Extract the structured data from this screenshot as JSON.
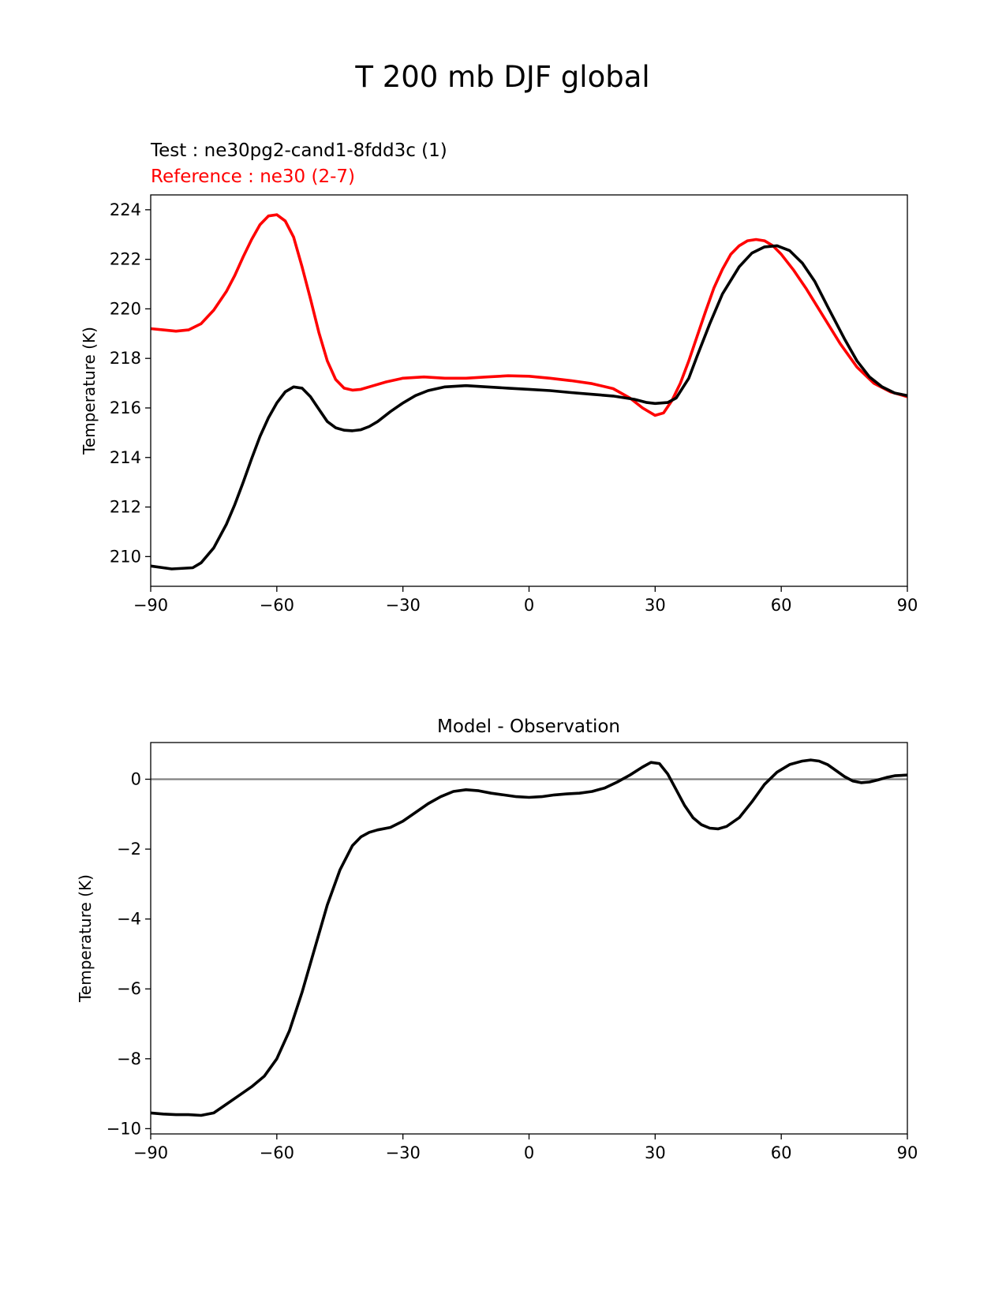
{
  "page_title": "T 200 mb DJF global",
  "chart_data": [
    {
      "type": "line",
      "legend_test": "Test : ne30pg2-cand1-8fdd3c (1)",
      "legend_reference": "Reference : ne30 (2-7)",
      "xlabel": "",
      "ylabel": "Temperature (K)",
      "xlim": [
        -90,
        90
      ],
      "ylim": [
        208.8,
        224.6
      ],
      "xticks": [
        -90,
        -60,
        -30,
        0,
        30,
        60,
        90
      ],
      "xtick_labels": [
        "−90",
        "−60",
        "−30",
        "0",
        "30",
        "60",
        "90"
      ],
      "yticks": [
        210,
        212,
        214,
        216,
        218,
        220,
        222,
        224
      ],
      "ytick_labels": [
        "210",
        "212",
        "214",
        "216",
        "218",
        "220",
        "222",
        "224"
      ],
      "series": [
        {
          "name": "Test",
          "color": "#000000",
          "x": [
            -90,
            -85,
            -80,
            -78,
            -75,
            -72,
            -70,
            -68,
            -66,
            -64,
            -62,
            -60,
            -58,
            -56,
            -54,
            -52,
            -50,
            -48,
            -46,
            -44,
            -42,
            -40,
            -38,
            -36,
            -33,
            -30,
            -27,
            -24,
            -20,
            -15,
            -10,
            -5,
            0,
            5,
            10,
            15,
            20,
            25,
            28,
            30,
            33,
            35,
            38,
            40,
            43,
            46,
            50,
            53,
            56,
            59,
            62,
            65,
            68,
            71,
            75,
            78,
            81,
            84,
            87,
            90
          ],
          "values": [
            209.62,
            209.5,
            209.55,
            209.75,
            210.35,
            211.3,
            212.1,
            213.0,
            213.95,
            214.85,
            215.6,
            216.2,
            216.65,
            216.85,
            216.8,
            216.45,
            215.95,
            215.45,
            215.2,
            215.1,
            215.08,
            215.12,
            215.25,
            215.45,
            215.85,
            216.2,
            216.5,
            216.7,
            216.85,
            216.9,
            216.85,
            216.8,
            216.75,
            216.7,
            216.62,
            216.55,
            216.48,
            216.35,
            216.22,
            216.18,
            216.22,
            216.4,
            217.2,
            218.1,
            219.4,
            220.6,
            221.7,
            222.25,
            222.5,
            222.55,
            222.35,
            221.85,
            221.1,
            220.1,
            218.8,
            217.9,
            217.25,
            216.85,
            216.6,
            216.5
          ]
        },
        {
          "name": "Reference",
          "color": "#ff0000",
          "x": [
            -90,
            -87,
            -84,
            -81,
            -78,
            -75,
            -72,
            -70,
            -68,
            -66,
            -64,
            -62,
            -60,
            -58,
            -56,
            -54,
            -52,
            -50,
            -48,
            -46,
            -44,
            -42,
            -40,
            -37,
            -34,
            -30,
            -25,
            -20,
            -15,
            -10,
            -5,
            0,
            5,
            10,
            15,
            20,
            24,
            27,
            30,
            32,
            34,
            36,
            38,
            40,
            42,
            44,
            46,
            48,
            50,
            52,
            54,
            56,
            58,
            60,
            63,
            66,
            70,
            74,
            78,
            82,
            86,
            90
          ],
          "values": [
            219.2,
            219.15,
            219.1,
            219.15,
            219.4,
            219.95,
            220.7,
            221.35,
            222.1,
            222.8,
            223.4,
            223.75,
            223.8,
            223.55,
            222.9,
            221.7,
            220.4,
            219.05,
            217.9,
            217.15,
            216.8,
            216.72,
            216.75,
            216.9,
            217.05,
            217.2,
            217.25,
            217.2,
            217.2,
            217.25,
            217.3,
            217.28,
            217.2,
            217.1,
            216.98,
            216.78,
            216.4,
            216.0,
            215.7,
            215.8,
            216.3,
            217.0,
            217.9,
            218.9,
            219.9,
            220.85,
            221.6,
            222.2,
            222.55,
            222.75,
            222.8,
            222.75,
            222.55,
            222.2,
            221.55,
            220.8,
            219.7,
            218.6,
            217.65,
            217.0,
            216.65,
            216.45
          ]
        }
      ]
    },
    {
      "type": "line",
      "title": "Model - Observation",
      "xlabel": "",
      "ylabel": "Temperature (K)",
      "xlim": [
        -90,
        90
      ],
      "ylim": [
        -10.15,
        1.05
      ],
      "xticks": [
        -90,
        -60,
        -30,
        0,
        30,
        60,
        90
      ],
      "xtick_labels": [
        "−90",
        "−60",
        "−30",
        "0",
        "30",
        "60",
        "90"
      ],
      "yticks": [
        -10,
        -8,
        -6,
        -4,
        -2,
        0
      ],
      "ytick_labels": [
        "−10",
        "−8",
        "−6",
        "−4",
        "−2",
        "0"
      ],
      "zero_line": {
        "value": 0,
        "color": "#808080"
      },
      "series": [
        {
          "name": "Difference",
          "color": "#000000",
          "x": [
            -90,
            -87,
            -84,
            -81,
            -78,
            -75,
            -72,
            -69,
            -66,
            -63,
            -60,
            -57,
            -54,
            -51,
            -48,
            -45,
            -42,
            -40,
            -38,
            -36,
            -33,
            -30,
            -27,
            -24,
            -21,
            -18,
            -15,
            -12,
            -9,
            -6,
            -3,
            0,
            3,
            6,
            9,
            12,
            15,
            18,
            21,
            24,
            27,
            29,
            31,
            33,
            35,
            37,
            39,
            41,
            43,
            45,
            47,
            50,
            53,
            56,
            59,
            62,
            65,
            67,
            69,
            71,
            73,
            75,
            77,
            79,
            81,
            83,
            85,
            87,
            90
          ],
          "values": [
            -9.55,
            -9.58,
            -9.6,
            -9.6,
            -9.62,
            -9.55,
            -9.3,
            -9.05,
            -8.8,
            -8.5,
            -8.0,
            -7.2,
            -6.1,
            -4.85,
            -3.6,
            -2.6,
            -1.9,
            -1.65,
            -1.52,
            -1.45,
            -1.38,
            -1.2,
            -0.95,
            -0.7,
            -0.5,
            -0.35,
            -0.3,
            -0.33,
            -0.4,
            -0.45,
            -0.5,
            -0.52,
            -0.5,
            -0.45,
            -0.42,
            -0.4,
            -0.35,
            -0.25,
            -0.08,
            0.12,
            0.35,
            0.48,
            0.45,
            0.15,
            -0.3,
            -0.75,
            -1.1,
            -1.3,
            -1.4,
            -1.42,
            -1.35,
            -1.1,
            -0.65,
            -0.15,
            0.2,
            0.42,
            0.52,
            0.55,
            0.52,
            0.42,
            0.25,
            0.08,
            -0.05,
            -0.1,
            -0.08,
            -0.02,
            0.05,
            0.1,
            0.12
          ]
        }
      ]
    }
  ]
}
